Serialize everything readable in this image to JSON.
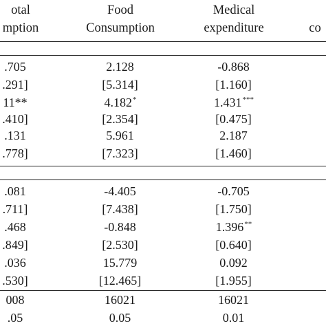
{
  "header": {
    "col1": [
      "otal",
      "mption"
    ],
    "col2": [
      "Food",
      "Consumption"
    ],
    "col3": [
      "Medical",
      "expenditure"
    ],
    "col4": [
      "",
      "co"
    ]
  },
  "rows": [
    {
      "c1": ".705",
      "c2": "2.128",
      "c2s": "",
      "c3": "-0.868",
      "c3s": ""
    },
    {
      "c1": ".291]",
      "c2": "[5.314]",
      "c2s": "",
      "c3": "[1.160]",
      "c3s": ""
    },
    {
      "c1": "11**",
      "c2": "4.182",
      "c2s": "*",
      "c3": "1.431",
      "c3s": "***"
    },
    {
      "c1": ".410]",
      "c2": "[2.354]",
      "c2s": "",
      "c3": "[0.475]",
      "c3s": ""
    },
    {
      "c1": ".131",
      "c2": "5.961",
      "c2s": "",
      "c3": "2.187",
      "c3s": ""
    },
    {
      "c1": ".778]",
      "c2": "[7.323]",
      "c2s": "",
      "c3": "[1.460]",
      "c3s": ""
    },
    {
      "c1": ".081",
      "c2": "-4.405",
      "c2s": "",
      "c3": "-0.705",
      "c3s": ""
    },
    {
      "c1": ".711]",
      "c2": "[7.438]",
      "c2s": "",
      "c3": "[1.750]",
      "c3s": ""
    },
    {
      "c1": ".468",
      "c2": "-0.848",
      "c2s": "",
      "c3": "1.396",
      "c3s": "**"
    },
    {
      "c1": ".849]",
      "c2": "[2.530]",
      "c2s": "",
      "c3": "[0.640]",
      "c3s": ""
    },
    {
      "c1": ".036",
      "c2": "15.779",
      "c2s": "",
      "c3": "0.092",
      "c3s": ""
    },
    {
      "c1": ".530]",
      "c2": "[12.465]",
      "c2s": "",
      "c3": "[1.955]",
      "c3s": ""
    },
    {
      "c1": "008",
      "c2": "16021",
      "c2s": "",
      "c3": "16021",
      "c3s": ""
    },
    {
      "c1": ".05",
      "c2": "0.05",
      "c2s": "",
      "c3": "0.01",
      "c3s": ""
    }
  ]
}
